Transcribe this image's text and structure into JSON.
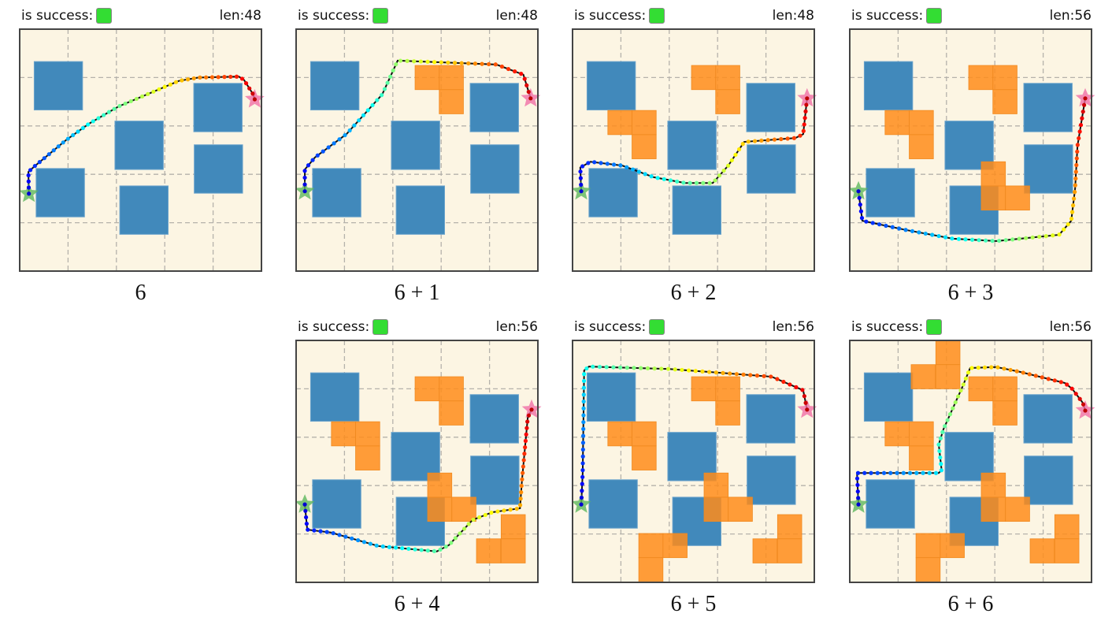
{
  "labels": {
    "success": "is success:",
    "len_prefix": "len:"
  },
  "colors": {
    "success": "#33dd33",
    "background": "#fcf5e3",
    "static_obstacle": "#4189bb",
    "added_obstacle": "#ff8c1a",
    "start": "#5cb85c",
    "goal": "#f06fa6"
  },
  "chart_data": {
    "type": "line",
    "grid": true,
    "xlim": [
      0,
      5
    ],
    "ylim": [
      0,
      5
    ],
    "static_obstacles": [
      [
        0.3,
        0.67
      ],
      [
        1.97,
        1.9
      ],
      [
        3.6,
        1.12
      ],
      [
        3.61,
        2.39
      ],
      [
        0.34,
        2.88
      ],
      [
        2.07,
        3.24
      ]
    ],
    "added_pieces": {
      "B": [
        [
          2.46,
          0.75
        ],
        [
          2.96,
          0.75
        ],
        [
          2.96,
          1.25
        ]
      ],
      "C": [
        [
          0.73,
          1.68
        ],
        [
          1.23,
          1.68
        ],
        [
          1.23,
          2.18
        ]
      ],
      "D": [
        [
          2.72,
          2.74
        ],
        [
          2.72,
          3.24
        ],
        [
          3.22,
          3.24
        ]
      ],
      "E": [
        [
          4.24,
          3.6
        ],
        [
          4.24,
          4.1
        ],
        [
          3.73,
          4.1
        ]
      ],
      "F": [
        [
          1.37,
          3.99
        ],
        [
          1.87,
          3.99
        ],
        [
          1.37,
          4.49
        ]
      ],
      "A": [
        [
          1.27,
          0.5
        ],
        [
          1.78,
          0.0
        ],
        [
          1.78,
          0.5
        ]
      ]
    },
    "panels": [
      {
        "caption": "6",
        "success": true,
        "len": 48,
        "pieces": [],
        "path": [
          [
            0.19,
            3.4
          ],
          [
            0.18,
            2.95
          ],
          [
            0.3,
            2.84
          ],
          [
            0.95,
            2.3
          ],
          [
            1.44,
            1.95
          ],
          [
            2.04,
            1.6
          ],
          [
            3.29,
            1.07
          ],
          [
            3.7,
            1.0
          ],
          [
            4.53,
            0.98
          ],
          [
            4.64,
            1.05
          ],
          [
            4.83,
            1.35
          ],
          [
            4.86,
            1.45
          ]
        ]
      },
      {
        "caption": "6 + 1",
        "success": true,
        "len": 48,
        "pieces": [
          "B"
        ],
        "path": [
          [
            0.18,
            3.35
          ],
          [
            0.18,
            2.9
          ],
          [
            0.39,
            2.65
          ],
          [
            1.04,
            2.17
          ],
          [
            1.78,
            1.35
          ],
          [
            2.1,
            0.65
          ],
          [
            4.14,
            0.73
          ],
          [
            4.7,
            0.94
          ],
          [
            4.85,
            1.43
          ]
        ]
      },
      {
        "caption": "6 + 2",
        "success": true,
        "len": 48,
        "pieces": [
          "B",
          "C"
        ],
        "path": [
          [
            0.18,
            3.35
          ],
          [
            0.16,
            2.86
          ],
          [
            0.37,
            2.74
          ],
          [
            1.03,
            2.82
          ],
          [
            1.68,
            3.06
          ],
          [
            2.33,
            3.18
          ],
          [
            2.9,
            3.18
          ],
          [
            3.22,
            2.82
          ],
          [
            3.55,
            2.33
          ],
          [
            4.61,
            2.25
          ],
          [
            4.77,
            2.17
          ],
          [
            4.85,
            1.43
          ]
        ]
      },
      {
        "caption": "6 + 3",
        "success": true,
        "len": 56,
        "pieces": [
          "B",
          "C",
          "D"
        ],
        "path": [
          [
            0.18,
            3.35
          ],
          [
            0.26,
            3.96
          ],
          [
            1.16,
            4.15
          ],
          [
            2.13,
            4.33
          ],
          [
            3.03,
            4.38
          ],
          [
            4.33,
            4.25
          ],
          [
            4.58,
            3.96
          ],
          [
            4.66,
            3.3
          ],
          [
            4.71,
            2.41
          ],
          [
            4.87,
            1.43
          ]
        ]
      },
      {
        "caption": "6 + 4",
        "success": true,
        "len": 56,
        "pieces": [
          "B",
          "C",
          "D",
          "E"
        ],
        "path": [
          [
            0.18,
            3.39
          ],
          [
            0.23,
            3.91
          ],
          [
            0.72,
            3.97
          ],
          [
            1.7,
            4.25
          ],
          [
            2.91,
            4.36
          ],
          [
            3.16,
            4.23
          ],
          [
            3.65,
            3.71
          ],
          [
            4.06,
            3.55
          ],
          [
            4.63,
            3.47
          ],
          [
            4.67,
            2.9
          ],
          [
            4.79,
            1.6
          ],
          [
            4.87,
            1.43
          ]
        ]
      },
      {
        "caption": "6 + 5",
        "success": true,
        "len": 56,
        "pieces": [
          "B",
          "C",
          "D",
          "E",
          "F"
        ],
        "path": [
          [
            0.18,
            3.39
          ],
          [
            0.21,
            2.74
          ],
          [
            0.24,
            0.62
          ],
          [
            0.34,
            0.54
          ],
          [
            2.0,
            0.59
          ],
          [
            4.12,
            0.75
          ],
          [
            4.77,
            1.03
          ],
          [
            4.85,
            1.43
          ]
        ]
      },
      {
        "caption": "6 + 6",
        "success": true,
        "len": 56,
        "pieces": [
          "B",
          "C",
          "D",
          "E",
          "F",
          "A"
        ],
        "path": [
          [
            0.18,
            3.39
          ],
          [
            0.15,
            2.74
          ],
          [
            0.27,
            2.74
          ],
          [
            1.84,
            2.74
          ],
          [
            1.9,
            2.68
          ],
          [
            1.84,
            2.15
          ],
          [
            1.94,
            1.83
          ],
          [
            2.33,
            0.96
          ],
          [
            2.49,
            0.57
          ],
          [
            3.03,
            0.55
          ],
          [
            3.52,
            0.65
          ],
          [
            4.45,
            0.88
          ],
          [
            4.6,
            1.0
          ],
          [
            4.82,
            1.29
          ],
          [
            4.87,
            1.45
          ]
        ]
      }
    ]
  }
}
